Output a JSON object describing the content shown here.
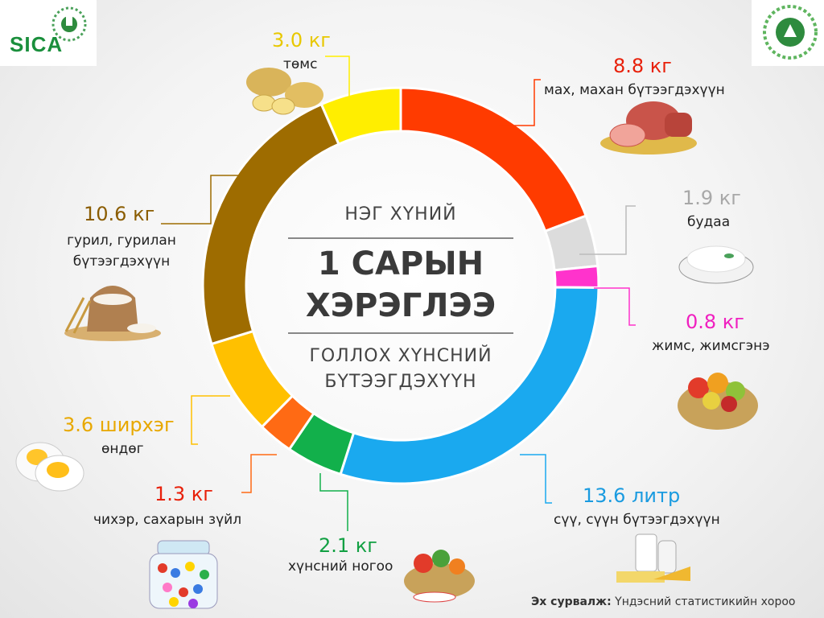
{
  "logos": {
    "left_text": "SICA",
    "left_color": "#1a8f3c"
  },
  "center": {
    "top": "НЭГ ХҮНИЙ",
    "big_line1": "1 САРЫН",
    "big_line2": "ХЭРЭГЛЭЭ",
    "bottom_line1": "ГОЛЛОХ ХҮНСНИЙ",
    "bottom_line2": "БҮТЭЭГДЭХҮҮН"
  },
  "source": {
    "prefix": "Эх сурвалж:",
    "text": " Үндэсний статистикийн хороо"
  },
  "chart_data": {
    "type": "pie",
    "donut": true,
    "slices": [
      {
        "label": "мах, махан бүтээгдэхүүн",
        "value": 8.8,
        "value_label": "8.8 кг",
        "color": "#ff3b00",
        "icon": "meat-icon"
      },
      {
        "label": "будаа",
        "value": 1.9,
        "value_label": "1.9 кг",
        "color": "#dcdcdc",
        "icon": "rice-icon"
      },
      {
        "label": "жимс, жимсгэнэ",
        "value": 0.8,
        "value_label": "0.8 кг",
        "color": "#ff33cc",
        "icon": "fruit-basket-icon"
      },
      {
        "label": "сүү, сүүн бүтээгдэхүүн",
        "value": 13.6,
        "value_label": "13.6 литр",
        "color": "#1aa9ef",
        "icon": "dairy-icon"
      },
      {
        "label": "хүнсний ногоо",
        "value": 2.1,
        "value_label": "2.1 кг",
        "color": "#12b04b",
        "icon": "vegetable-basket-icon"
      },
      {
        "label": "чихэр, сахарын зүйл",
        "value": 1.3,
        "value_label": "1.3 кг",
        "color": "#ff6a14",
        "icon": "candy-jar-icon"
      },
      {
        "label": "өндөг",
        "value": 3.6,
        "value_label": "3.6 ширхэг",
        "color": "#ffc000",
        "icon": "egg-icon"
      },
      {
        "label": "гурил, гурилан бүтээгдэхүүн",
        "value": 10.6,
        "value_label": "10.6 кг",
        "color": "#9e6c00",
        "icon": "flour-sack-icon"
      },
      {
        "label": "төмс",
        "value": 3.0,
        "value_label": "3.0 кг",
        "color": "#ffee00",
        "icon": "potato-icon"
      }
    ]
  }
}
